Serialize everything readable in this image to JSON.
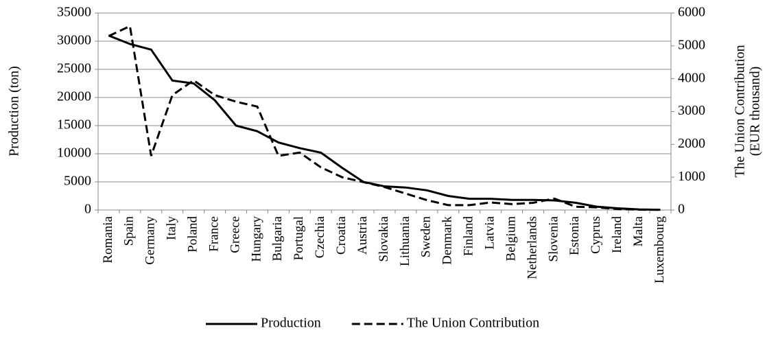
{
  "chart_data": {
    "type": "line",
    "ylabel": "Production (ton)",
    "y2label": [
      "The Union Contribution",
      "(EUR thousand)"
    ],
    "categories": [
      "Romania",
      "Spain",
      "Germany",
      "Italy",
      "Poland",
      "France",
      "Greece",
      "Hungary",
      "Bulgaria",
      "Portugal",
      "Czechia",
      "Croatia",
      "Austria",
      "Slovakia",
      "Lithuania",
      "Sweden",
      "Denmark",
      "Finland",
      "Latvia",
      "Belgium",
      "Netherlands",
      "Slovenia",
      "Estonia",
      "Cyprus",
      "Ireland",
      "Malta",
      "Luxembourg"
    ],
    "series": [
      {
        "name": "Production",
        "color": "#000000",
        "dashed": false,
        "values": [
          31000,
          29500,
          28500,
          23000,
          22500,
          19500,
          15000,
          14000,
          12000,
          11000,
          10200,
          7500,
          5000,
          4200,
          4000,
          3500,
          2500,
          2000,
          2000,
          1800,
          1800,
          1700,
          1300,
          600,
          300,
          100,
          50
        ]
      },
      {
        "name": "The Union Contribution",
        "color": "#000000",
        "dashed": true,
        "axis": "y2",
        "values": [
          5300,
          5600,
          1650,
          3500,
          3950,
          3500,
          3300,
          3150,
          1650,
          1750,
          1300,
          1000,
          850,
          700,
          500,
          300,
          150,
          150,
          230,
          180,
          220,
          350,
          100,
          80,
          30,
          10,
          5
        ]
      }
    ],
    "ylim": [
      0,
      35000
    ],
    "yticks": [
      0,
      5000,
      10000,
      15000,
      20000,
      25000,
      30000,
      35000
    ],
    "y2lim": [
      0,
      6000
    ],
    "y2ticks": [
      0,
      1000,
      2000,
      3000,
      4000,
      5000,
      6000
    ],
    "grid": true,
    "legend": "bottom"
  }
}
